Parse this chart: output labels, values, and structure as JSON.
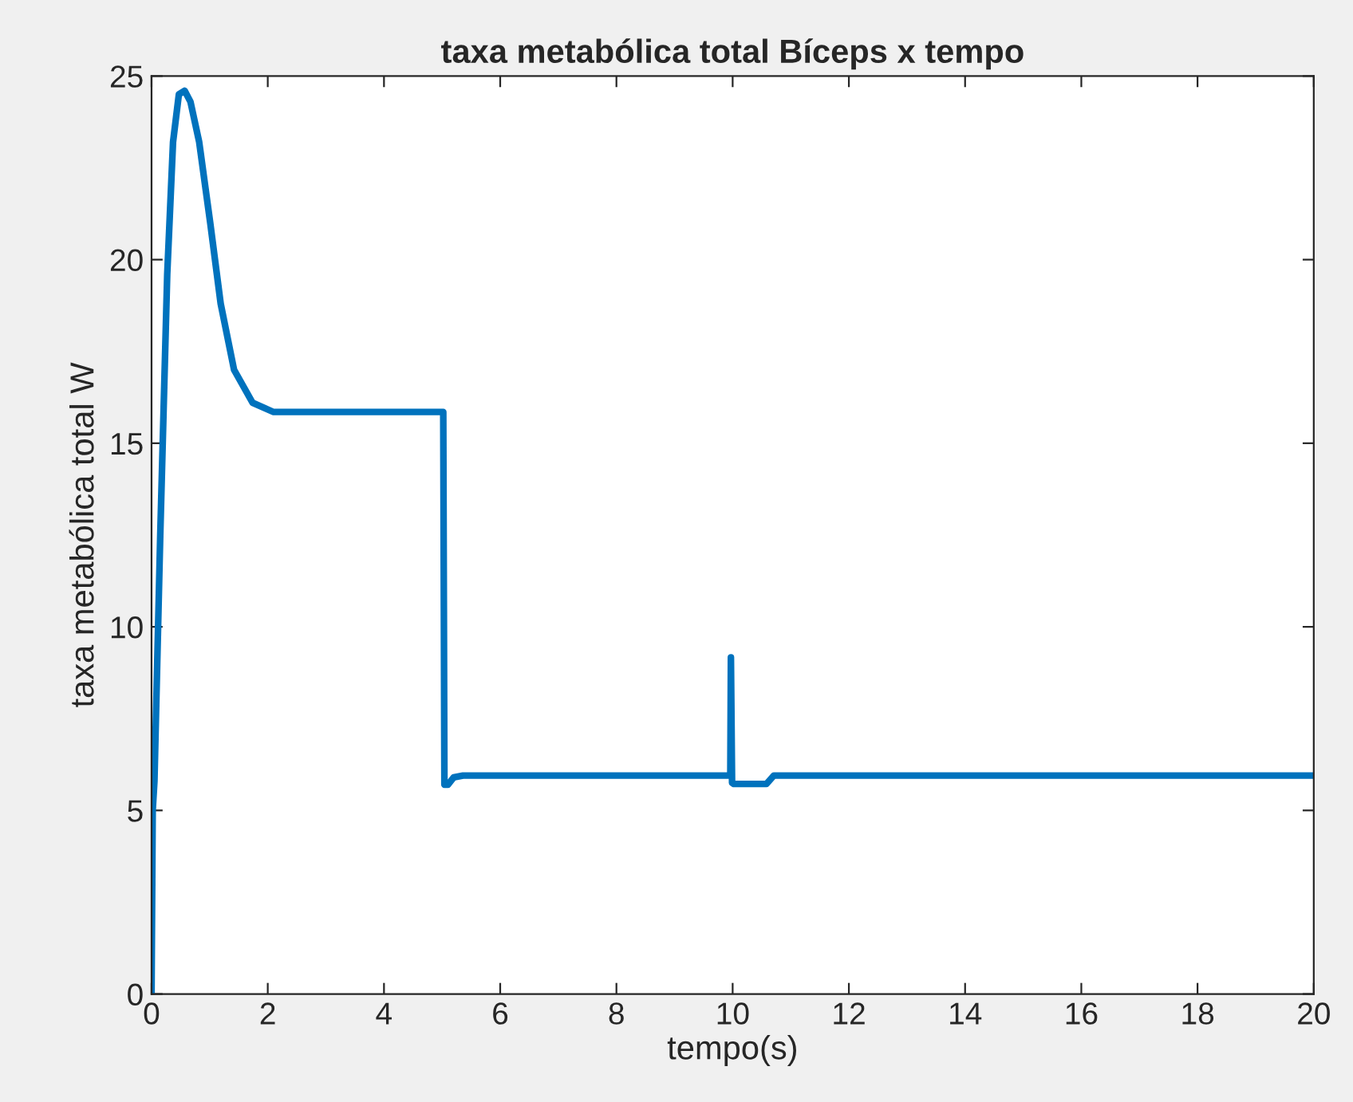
{
  "chart_data": {
    "type": "line",
    "title": "taxa metabólica total Bíceps x tempo",
    "xlabel": "tempo(s)",
    "ylabel": "taxa metabólica total W",
    "x": [
      0,
      0.02,
      0.05,
      0.15,
      0.27,
      0.37,
      0.47,
      0.57,
      0.67,
      0.82,
      1.01,
      1.19,
      1.42,
      1.74,
      2.1,
      3,
      4,
      5.02,
      5.04,
      5.1,
      5.2,
      5.36,
      6,
      8,
      9.96,
      9.97,
      9.99,
      10.02,
      10.07,
      10.58,
      10.71,
      11,
      14,
      20
    ],
    "series": [
      {
        "color": "#0072bd",
        "values": [
          0,
          5.0,
          5.8,
          12.5,
          19.6,
          23.2,
          24.5,
          24.6,
          24.3,
          23.2,
          21.0,
          18.8,
          17.0,
          16.1,
          15.85,
          15.85,
          15.85,
          15.85,
          5.7,
          5.7,
          5.9,
          5.95,
          5.95,
          5.95,
          5.95,
          9.17,
          5.75,
          5.72,
          5.72,
          5.72,
          5.95,
          5.95,
          5.95,
          5.95
        ]
      }
    ],
    "xlim": [
      0,
      20
    ],
    "ylim": [
      0,
      25
    ],
    "xticks": [
      0,
      2,
      4,
      6,
      8,
      10,
      12,
      14,
      16,
      18,
      20
    ],
    "yticks": [
      0,
      5,
      10,
      15,
      20,
      25
    ],
    "grid": false,
    "legend": false,
    "line_style": "solid",
    "marker": "none"
  }
}
